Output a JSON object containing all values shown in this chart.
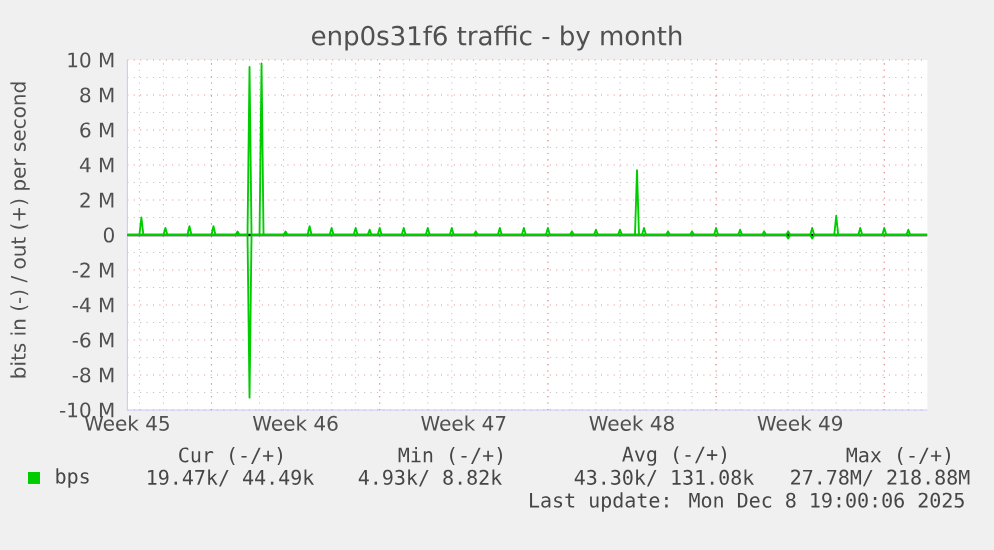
{
  "chart_data": {
    "type": "line",
    "title": "enp0s31f6 traffic - by month",
    "ylabel": "bits in (-) / out (+) per second",
    "xlim": [
      "2025-11-05T12:00",
      "2025-12-08T19:00"
    ],
    "xticks": [
      {
        "value": "2025-11-05T12:00",
        "label": "Week 45"
      },
      {
        "value": "2025-11-09",
        "label": null
      },
      {
        "value": "2025-11-12T12:00",
        "label": "Week 46"
      },
      {
        "value": "2025-11-16",
        "label": null
      },
      {
        "value": "2025-11-19T12:00",
        "label": "Week 47"
      },
      {
        "value": "2025-11-23",
        "label": null
      },
      {
        "value": "2025-11-26T12:00",
        "label": "Week 48"
      },
      {
        "value": "2025-11-30",
        "label": null
      },
      {
        "value": "2025-12-03T12:00",
        "label": "Week 49"
      },
      {
        "value": "2025-12-07",
        "label": null
      }
    ],
    "ylim": [
      -10,
      10
    ],
    "yticks": [
      {
        "value": -10,
        "label": "-10 M"
      },
      {
        "value": -8,
        "label": "-8 M"
      },
      {
        "value": -6,
        "label": "-6 M"
      },
      {
        "value": -4,
        "label": "-4 M"
      },
      {
        "value": -2,
        "label": "-2 M"
      },
      0,
      {
        "value": 2,
        "label": "2 M"
      },
      {
        "value": 4,
        "label": "4 M"
      },
      {
        "value": 6,
        "label": "6 M"
      },
      {
        "value": 8,
        "label": "8 M"
      },
      {
        "value": 10,
        "label": "10 M"
      }
    ],
    "grid": true,
    "legend": "bottom",
    "ref_lines": [
      {
        "axis": "y",
        "value": 0,
        "color": "#000000"
      }
    ],
    "annotations": [
      "Cur (-/+)",
      "Min (-/+)",
      "Avg (-/+)",
      "Max (-/+)",
      "19.47k/ 44.49k",
      "4.93k/ 8.82k",
      "43.30k/ 131.08k",
      "27.78M/ 218.88M",
      "Last update: Mon Dec 8 19:00:06 2025"
    ],
    "series": [
      {
        "name": "bps",
        "color": "#00cc00",
        "x": [
          "2025-11-05T12:00",
          "2025-11-06T00:00",
          "2025-11-06T02:00",
          "2025-11-06T04:00",
          "2025-11-07T00:00",
          "2025-11-07T02:00",
          "2025-11-07T04:00",
          "2025-11-08T00:00",
          "2025-11-08T02:00",
          "2025-11-08T04:00",
          "2025-11-09T00:00",
          "2025-11-09T02:00",
          "2025-11-09T04:00",
          "2025-11-10T00:00",
          "2025-11-10T02:00",
          "2025-11-10T04:00",
          "2025-11-10T12:00",
          "2025-11-10T14:00",
          "2025-11-10T16:00",
          "2025-11-11T00:00",
          "2025-11-11T02:00",
          "2025-11-11T04:00",
          "2025-11-12T00:00",
          "2025-11-12T02:00",
          "2025-11-12T04:00",
          "2025-11-13T00:00",
          "2025-11-13T02:00",
          "2025-11-13T04:00",
          "2025-11-13T22:00",
          "2025-11-14T00:00",
          "2025-11-14T02:00",
          "2025-11-14T22:00",
          "2025-11-15T00:00",
          "2025-11-15T02:00",
          "2025-11-15T12:00",
          "2025-11-15T14:00",
          "2025-11-15T16:00",
          "2025-11-15T22:00",
          "2025-11-16T00:00",
          "2025-11-16T02:00",
          "2025-11-16T22:00",
          "2025-11-17T00:00",
          "2025-11-17T02:00",
          "2025-11-17T22:00",
          "2025-11-18T00:00",
          "2025-11-18T02:00",
          "2025-11-18T22:00",
          "2025-11-19T00:00",
          "2025-11-19T02:00",
          "2025-11-19T22:00",
          "2025-11-20T00:00",
          "2025-11-20T02:00",
          "2025-11-20T22:00",
          "2025-11-21T00:00",
          "2025-11-21T02:00",
          "2025-11-21T22:00",
          "2025-11-22T00:00",
          "2025-11-22T02:00",
          "2025-11-22T22:00",
          "2025-11-23T00:00",
          "2025-11-23T02:00",
          "2025-11-23T22:00",
          "2025-11-24T00:00",
          "2025-11-24T02:00",
          "2025-11-24T22:00",
          "2025-11-25T00:00",
          "2025-11-25T02:00",
          "2025-11-25T22:00",
          "2025-11-26T00:00",
          "2025-11-26T02:00",
          "2025-11-26T15:00",
          "2025-11-26T17:00",
          "2025-11-26T19:00",
          "2025-11-26T22:00",
          "2025-11-27T00:00",
          "2025-11-27T02:00",
          "2025-11-27T22:00",
          "2025-11-28T00:00",
          "2025-11-28T02:00",
          "2025-11-28T22:00",
          "2025-11-29T00:00",
          "2025-11-29T02:00",
          "2025-11-29T22:00",
          "2025-11-30T00:00",
          "2025-11-30T02:00",
          "2025-11-30T22:00",
          "2025-12-01T00:00",
          "2025-12-01T02:00",
          "2025-12-01T22:00",
          "2025-12-02T00:00",
          "2025-12-02T02:00",
          "2025-12-02T22:00",
          "2025-12-03T00:00",
          "2025-12-03T02:00",
          "2025-12-03T22:00",
          "2025-12-04T00:00",
          "2025-12-04T02:00",
          "2025-12-04T22:00",
          "2025-12-05T00:00",
          "2025-12-05T02:00",
          "2025-12-05T22:00",
          "2025-12-06T00:00",
          "2025-12-06T02:00",
          "2025-12-06T22:00",
          "2025-12-07T00:00",
          "2025-12-07T02:00",
          "2025-12-07T22:00",
          "2025-12-08T00:00",
          "2025-12-08T02:00",
          "2025-12-08T19:00"
        ],
        "values": [
          0,
          0,
          1.0,
          0,
          0,
          0.4,
          0,
          0,
          0.5,
          0,
          0,
          0.5,
          0,
          0,
          0.2,
          0,
          0,
          9.6,
          0,
          0,
          9.8,
          0,
          0,
          0.2,
          0,
          0,
          0.5,
          0,
          0,
          0.4,
          0,
          0,
          0.4,
          0,
          0,
          0.3,
          0,
          0,
          0.4,
          0,
          0,
          0.4,
          0,
          0,
          0.4,
          0,
          0,
          0.4,
          0,
          0,
          0.2,
          0,
          0,
          0.4,
          0,
          0,
          0.4,
          0,
          0,
          0.4,
          0,
          0,
          0.2,
          0,
          0,
          0.3,
          0,
          0,
          0.3,
          0,
          0,
          3.7,
          0,
          0,
          0.4,
          0,
          0,
          0.2,
          0,
          0,
          0.2,
          0,
          0,
          0.4,
          0,
          0,
          0.3,
          0,
          0,
          0.2,
          0,
          0,
          0.2,
          0,
          0,
          0.4,
          0,
          0,
          1.1,
          0,
          0,
          0.4,
          0,
          0,
          0.4,
          0,
          0,
          0.3,
          0,
          0
        ]
      },
      {
        "color": "#00cc00",
        "x": [
          "2025-11-05T12:00",
          "2025-11-10T12:00",
          "2025-11-10T14:00",
          "2025-11-10T16:00",
          "2025-12-02T22:00",
          "2025-12-03T00:00",
          "2025-12-03T02:00",
          "2025-12-03T22:00",
          "2025-12-04T00:00",
          "2025-12-04T02:00",
          "2025-12-08T19:00"
        ],
        "values": [
          0,
          0,
          -9.3,
          0,
          0,
          -0.2,
          0,
          0,
          -0.2,
          0,
          0
        ]
      }
    ]
  }
}
